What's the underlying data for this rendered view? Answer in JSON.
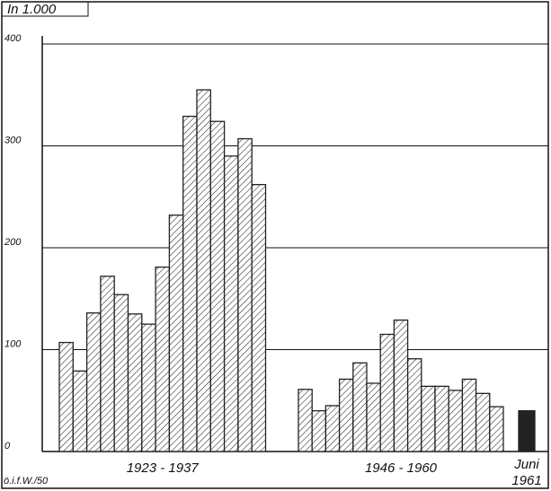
{
  "chart_data": {
    "type": "bar",
    "unit_label": "In 1.000",
    "source": "ö.i.f.W./50",
    "ylim": [
      0,
      400
    ],
    "yticks": [
      0,
      100,
      200,
      300,
      400
    ],
    "grid": true,
    "color": "#222",
    "groups": [
      {
        "label": [
          "1923 - 1937"
        ],
        "fill": "hatch",
        "values": [
          107,
          79,
          136,
          172,
          154,
          135,
          125,
          181,
          232,
          329,
          355,
          324,
          290,
          307,
          262
        ]
      },
      {
        "label": [
          "1946 - 1960"
        ],
        "fill": "hatch",
        "values": [
          61,
          40,
          45,
          71,
          87,
          67,
          115,
          129,
          91,
          64,
          64,
          60,
          71,
          57,
          44
        ]
      },
      {
        "label": [
          "Juni",
          "1961"
        ],
        "fill": "solid",
        "values": [
          40
        ]
      }
    ]
  }
}
